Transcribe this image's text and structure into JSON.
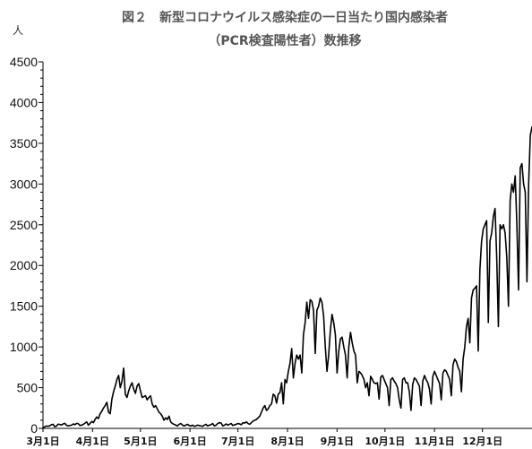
{
  "chart_data": {
    "type": "line",
    "title": "図２　新型コロナウイルス感染症の一日当たり国内感染者",
    "subtitle": "（PCR検査陽性者）数推移",
    "ylabel": "人",
    "ylim": [
      0,
      4500
    ],
    "yticks": [
      0,
      500,
      1000,
      1500,
      2000,
      2500,
      3000,
      3500,
      4000,
      4500
    ],
    "xticks": [
      "3月1日",
      "4月1日",
      "5月1日",
      "6月1日",
      "7月1日",
      "8月1日",
      "9月1日",
      "10月1日",
      "11月1日",
      "12月1日"
    ],
    "x_start": "3月1日",
    "grid": false,
    "legend": false,
    "line_color": "#000000",
    "series": [
      {
        "values": [
          10,
          18,
          30,
          25,
          32,
          45,
          50,
          20,
          28,
          52,
          48,
          42,
          55,
          62,
          38,
          30,
          36,
          40,
          55,
          45,
          62,
          58,
          35,
          40,
          50,
          65,
          80,
          40,
          60,
          85,
          70,
          110,
          140,
          120,
          180,
          210,
          250,
          280,
          320,
          200,
          180,
          360,
          450,
          520,
          600,
          650,
          500,
          580,
          740,
          420,
          380,
          460,
          520,
          560,
          480,
          430,
          520,
          550,
          460,
          380,
          390,
          400,
          350,
          380,
          400,
          300,
          260,
          280,
          240,
          200,
          180,
          150,
          100,
          130,
          110,
          150,
          80,
          60,
          50,
          40,
          30,
          50,
          60,
          40,
          30,
          40,
          50,
          35,
          30,
          40,
          25,
          30,
          40,
          35,
          30,
          25,
          40,
          50,
          30,
          40,
          45,
          60,
          30,
          40,
          60,
          70,
          65,
          30,
          40,
          55,
          40,
          50,
          60,
          35,
          45,
          50,
          60,
          55,
          45,
          70,
          65,
          80,
          60,
          50,
          70,
          90,
          100,
          110,
          130,
          150,
          200,
          250,
          280,
          220,
          240,
          280,
          300,
          420,
          400,
          310,
          420,
          440,
          560,
          300,
          600,
          560,
          700,
          800,
          980,
          620,
          800,
          900,
          850,
          900,
          680,
          1150,
          1300,
          1550,
          1350,
          1580,
          1560,
          1450,
          920,
          1450,
          1500,
          1600,
          1550,
          1380,
          1000,
          700,
          900,
          1200,
          1400,
          1300,
          1150,
          680,
          950,
          1100,
          1120,
          1000,
          900,
          620,
          1000,
          1180,
          1050,
          950,
          900,
          560,
          700,
          680,
          650,
          600,
          500,
          560,
          400,
          640,
          600,
          560,
          550,
          560,
          360,
          630,
          650,
          600,
          550,
          500,
          280,
          600,
          620,
          580,
          550,
          500,
          350,
          250,
          600,
          620,
          560,
          560,
          450,
          220,
          540,
          620,
          600,
          560,
          520,
          280,
          580,
          650,
          600,
          560,
          480,
          300,
          640,
          700,
          650,
          600,
          550,
          350,
          680,
          720,
          700,
          650,
          600,
          400,
          780,
          850,
          820,
          750,
          700,
          450,
          850,
          1000,
          1250,
          1350,
          1050,
          1600,
          1700,
          1720,
          1750,
          950,
          1950,
          2300,
          2450,
          2500,
          2550,
          1300,
          2300,
          2400,
          2600,
          2700,
          2100,
          1250,
          2500,
          2450,
          2500,
          2400,
          2100,
          1500,
          2800,
          3000,
          2900,
          3100,
          2500,
          1700,
          3200,
          3250,
          3000,
          2900,
          1800,
          3000,
          3600,
          3700
        ]
      }
    ]
  }
}
